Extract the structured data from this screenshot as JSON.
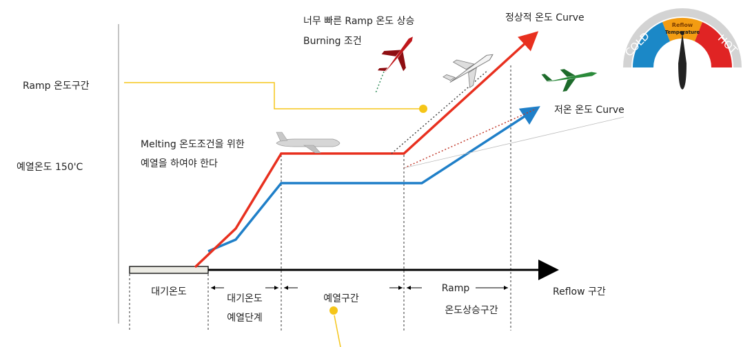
{
  "left_labels": {
    "ramp_section": "Ramp  온도구간",
    "preheat_temp": "예열온도  150'C"
  },
  "annotations": {
    "too_fast_line1": "너무  빠른  Ramp 온도  상승",
    "too_fast_line2": "Burning  조건",
    "normal_curve": "정상적  온도 Curve",
    "low_curve": "저온  온도  Curve",
    "melting_line1": "Melting  온도조건을  위한",
    "melting_line2": "예열을  하여야  한다"
  },
  "stages": {
    "standby": "대기온도",
    "standby_preheat_line1": "대기온도",
    "standby_preheat_line2": "예열단계",
    "preheat": "예열구간",
    "ramp_line1": "Ramp",
    "ramp_line2": "온도상승구간",
    "reflow": "Reflow  구간"
  },
  "gauge": {
    "cold": "COLD",
    "hot": "HOT",
    "title_line1": "Reflow",
    "title_line2": "Temperature"
  },
  "colors": {
    "normal_curve": "#e8301f",
    "low_curve": "#1f7fc8",
    "ramp_marker": "#f5c518",
    "axis": "#000000"
  }
}
